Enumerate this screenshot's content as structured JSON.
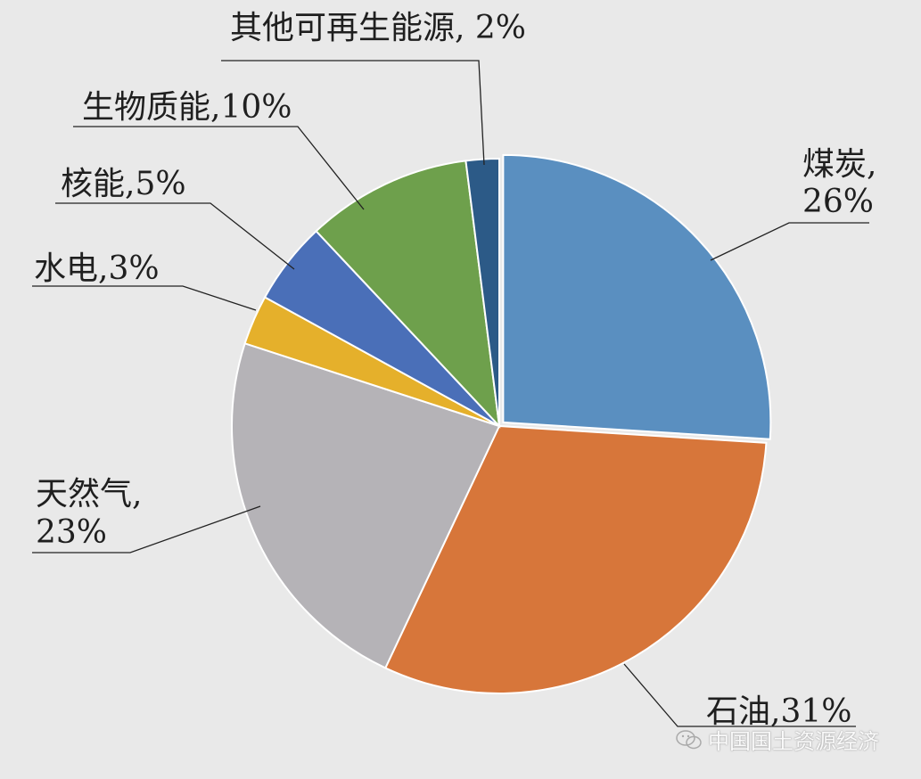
{
  "chart_data": {
    "type": "pie",
    "title": "",
    "slices": [
      {
        "label": "煤炭",
        "label_lines": [
          "煤炭,",
          "26%"
        ],
        "value": 26,
        "color": "#5a8fc0",
        "exploded": true
      },
      {
        "label": "石油",
        "label_lines": [
          "石油,31%"
        ],
        "value": 31,
        "color": "#d7763a"
      },
      {
        "label": "天然气",
        "label_lines": [
          "天然气,",
          "23%"
        ],
        "value": 23,
        "color": "#b5b3b7"
      },
      {
        "label": "水电",
        "label_lines": [
          "水电,3%"
        ],
        "value": 3,
        "color": "#e5b02b"
      },
      {
        "label": "核能",
        "label_lines": [
          "核能,5%"
        ],
        "value": 5,
        "color": "#4a6fb8"
      },
      {
        "label": "生物质能",
        "label_lines": [
          "生物质能,10%"
        ],
        "value": 10,
        "color": "#6ea04c"
      },
      {
        "label": "其他可再生能源",
        "label_lines": [
          "其他可再生能源, 2%"
        ],
        "value": 2,
        "color": "#2c5a87"
      }
    ]
  },
  "watermark": {
    "text": "中国国土资源经济",
    "icon": "wechat-icon"
  }
}
